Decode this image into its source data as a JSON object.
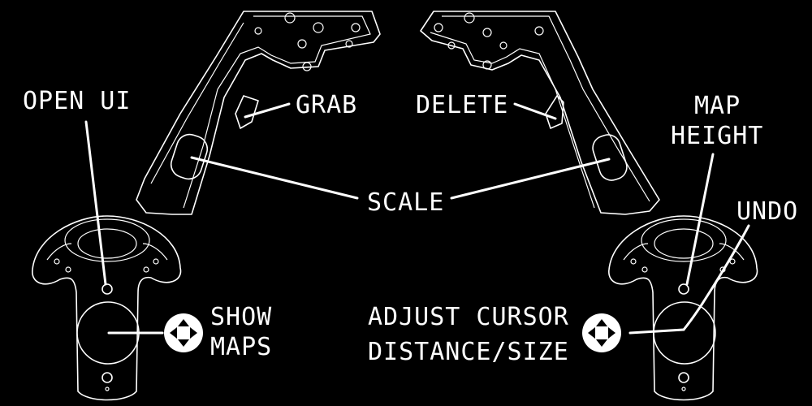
{
  "labels": {
    "open_ui": "OPEN UI",
    "grab": "GRAB",
    "delete": "DELETE",
    "map_height_line1": "MAP",
    "map_height_line2": "HEIGHT",
    "scale": "SCALE",
    "undo": "UNDO",
    "show_maps_line1": "SHOW",
    "show_maps_line2": "MAPS",
    "adjust_cursor_line1": "ADJUST CURSOR",
    "adjust_cursor_line2": "DISTANCE/SIZE"
  },
  "colors": {
    "background": "#000000",
    "foreground": "#ffffff"
  },
  "icons": {
    "left_dpad": "dpad-arrows-icon",
    "right_dpad": "dpad-arrows-icon"
  }
}
